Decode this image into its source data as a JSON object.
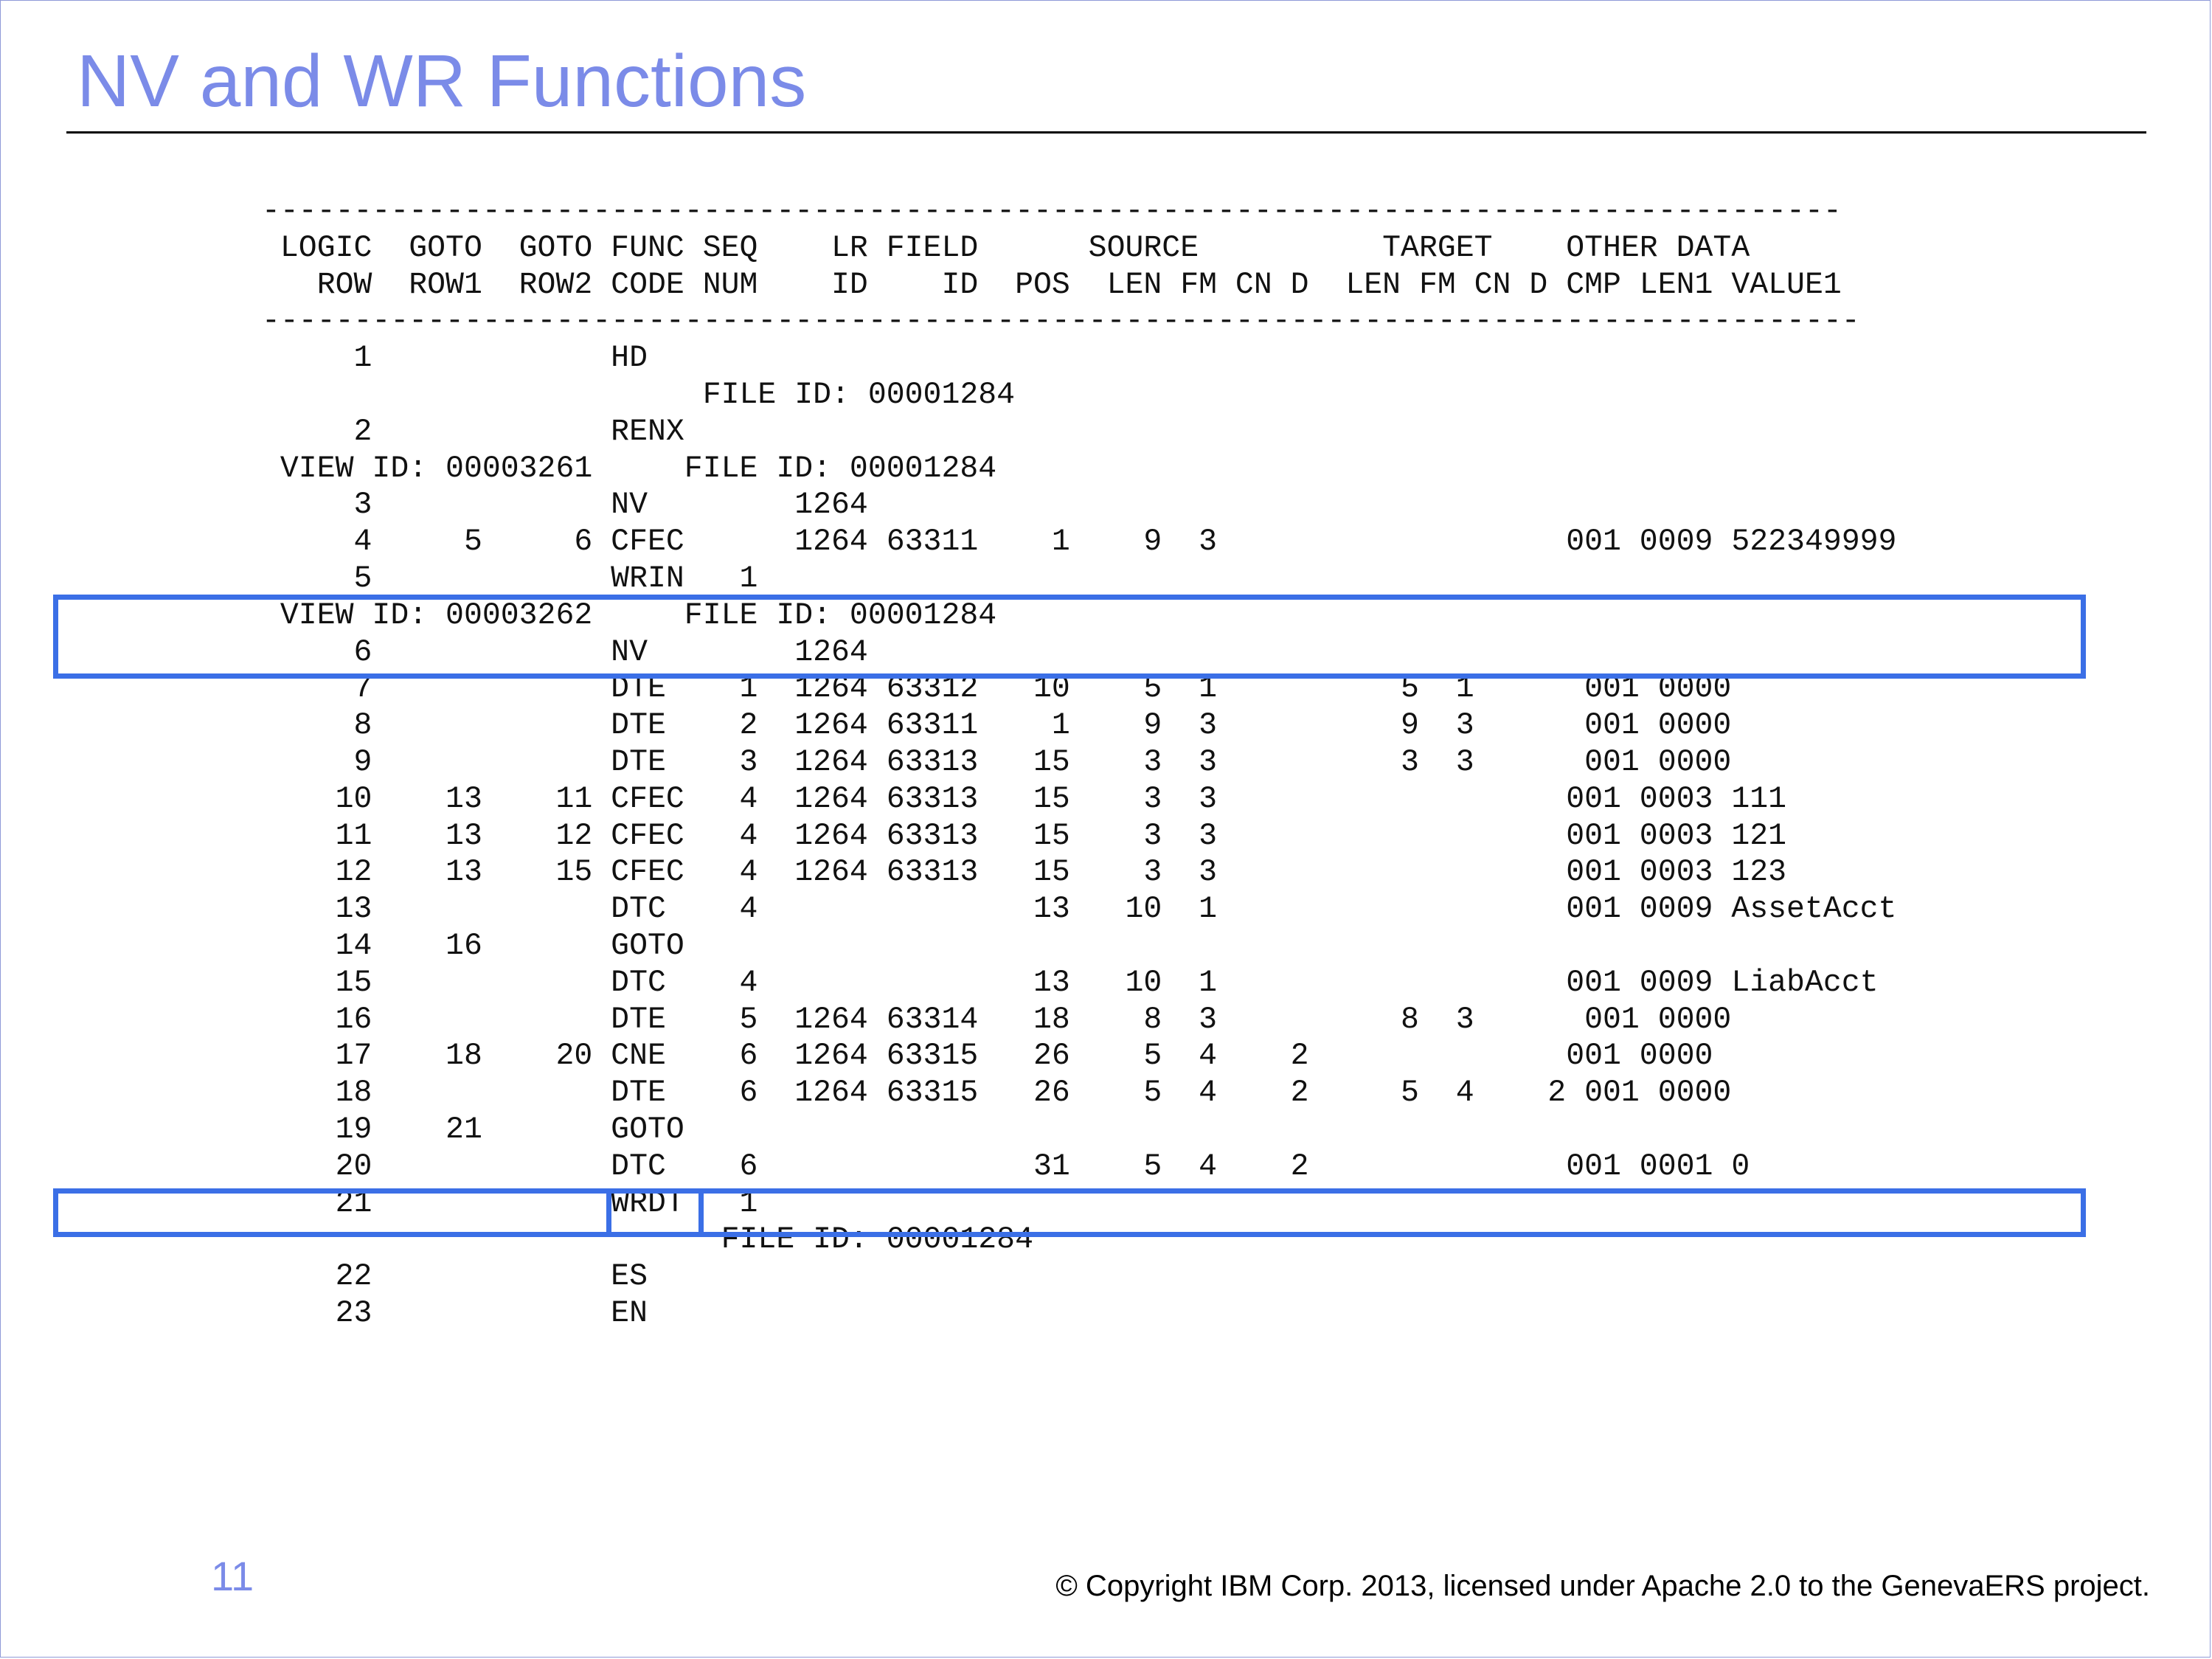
{
  "slide": {
    "title": "NV and WR Functions",
    "page_number": "11",
    "copyright": "© Copyright IBM Corp. 2013, licensed under Apache 2.0 to the GenevaERS project."
  },
  "listing": {
    "lines": [
      "--------------------------------------------------------------------------------------",
      " LOGIC  GOTO  GOTO FUNC SEQ    LR FIELD      SOURCE          TARGET    OTHER DATA",
      "   ROW  ROW1  ROW2 CODE NUM    ID    ID  POS  LEN FM CN D  LEN FM CN D CMP LEN1 VALUE1",
      "---------------------------------------------------------------------------------------",
      "     1             HD",
      "                        FILE ID: 00001284",
      "     2             RENX",
      " VIEW ID: 00003261     FILE ID: 00001284",
      "     3             NV        1264",
      "     4     5     6 CFEC      1264 63311    1    9  3                   001 0009 522349999",
      "     5             WRIN   1",
      " VIEW ID: 00003262     FILE ID: 00001284",
      "     6             NV        1264",
      "     7             DTE    1  1264 63312   10    5  1          5  1      001 0000",
      "     8             DTE    2  1264 63311    1    9  3          9  3      001 0000",
      "     9             DTE    3  1264 63313   15    3  3          3  3      001 0000",
      "    10    13    11 CFEC   4  1264 63313   15    3  3                   001 0003 111",
      "    11    13    12 CFEC   4  1264 63313   15    3  3                   001 0003 121",
      "    12    13    15 CFEC   4  1264 63313   15    3  3                   001 0003 123",
      "    13             DTC    4               13   10  1                   001 0009 AssetAcct",
      "    14    16       GOTO",
      "    15             DTC    4               13   10  1                   001 0009 LiabAcct",
      "    16             DTE    5  1264 63314   18    8  3          8  3      001 0000",
      "    17    18    20 CNE    6  1264 63315   26    5  4    2              001 0000",
      "    18             DTE    6  1264 63315   26    5  4    2     5  4    2 001 0000",
      "    19    21       GOTO",
      "    20             DTC    6               31    5  4    2              001 0001 0",
      "    21             WRDT   1",
      "                         FILE ID: 00001284",
      "    22             ES",
      "    23             EN"
    ]
  }
}
